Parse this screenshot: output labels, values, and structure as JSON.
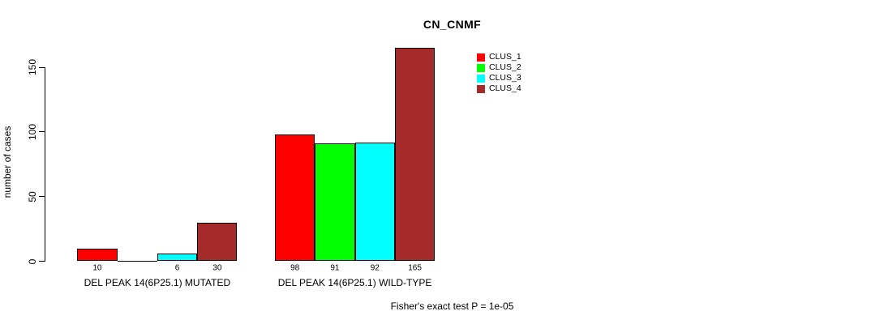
{
  "chart_data": {
    "type": "bar",
    "title": "CN_CNMF",
    "ylabel": "number of cases",
    "xlabel": "",
    "ylim": [
      0,
      165
    ],
    "yticks": [
      0,
      50,
      100,
      150
    ],
    "grid": false,
    "legend_position": "top-right",
    "background_color": "#FFFFFF",
    "axis_color": "#000000",
    "series": [
      {
        "name": "CLUS_1",
        "color": "#FF0000",
        "values": [
          10,
          98
        ]
      },
      {
        "name": "CLUS_2",
        "color": "#00FF00",
        "values": [
          0,
          91
        ]
      },
      {
        "name": "CLUS_3",
        "color": "#00FFFF",
        "values": [
          6,
          92
        ]
      },
      {
        "name": "CLUS_4",
        "color": "#A52A2A",
        "values": [
          30,
          165
        ]
      }
    ],
    "categories": [
      "DEL PEAK 14(6P25.1) MUTATED",
      "DEL PEAK 14(6P25.1) WILD-TYPE"
    ],
    "bar_value_labels": [
      [
        "10",
        "",
        "6",
        "30"
      ],
      [
        "98",
        "91",
        "92",
        "165"
      ]
    ],
    "annotation": "Fisher's exact test P = 1e-05"
  }
}
